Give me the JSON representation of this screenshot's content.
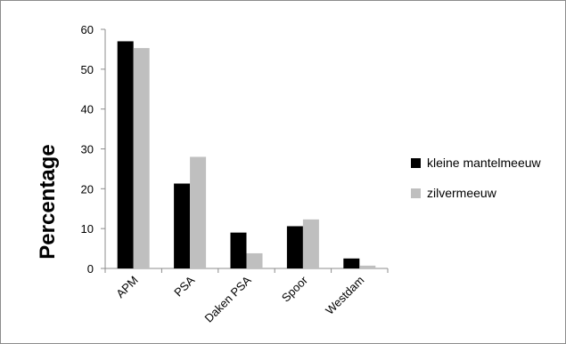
{
  "chart_data": {
    "type": "bar",
    "title": "",
    "xlabel": "",
    "ylabel": "Percentage",
    "categories": [
      "APM",
      "PSA",
      "Daken PSA",
      "Spoor",
      "Westdam"
    ],
    "series": [
      {
        "name": "kleine mantelmeeuw",
        "color": "#000000",
        "values": [
          57.0,
          21.3,
          9.0,
          10.6,
          2.5
        ]
      },
      {
        "name": "zilvermeeuw",
        "color": "#bfbfbf",
        "values": [
          55.3,
          28.0,
          3.8,
          12.3,
          0.7
        ]
      }
    ],
    "ylim": [
      0,
      60
    ],
    "yticks": [
      0,
      10,
      20,
      30,
      40,
      50,
      60
    ],
    "grid": false,
    "legend_position": "right"
  }
}
